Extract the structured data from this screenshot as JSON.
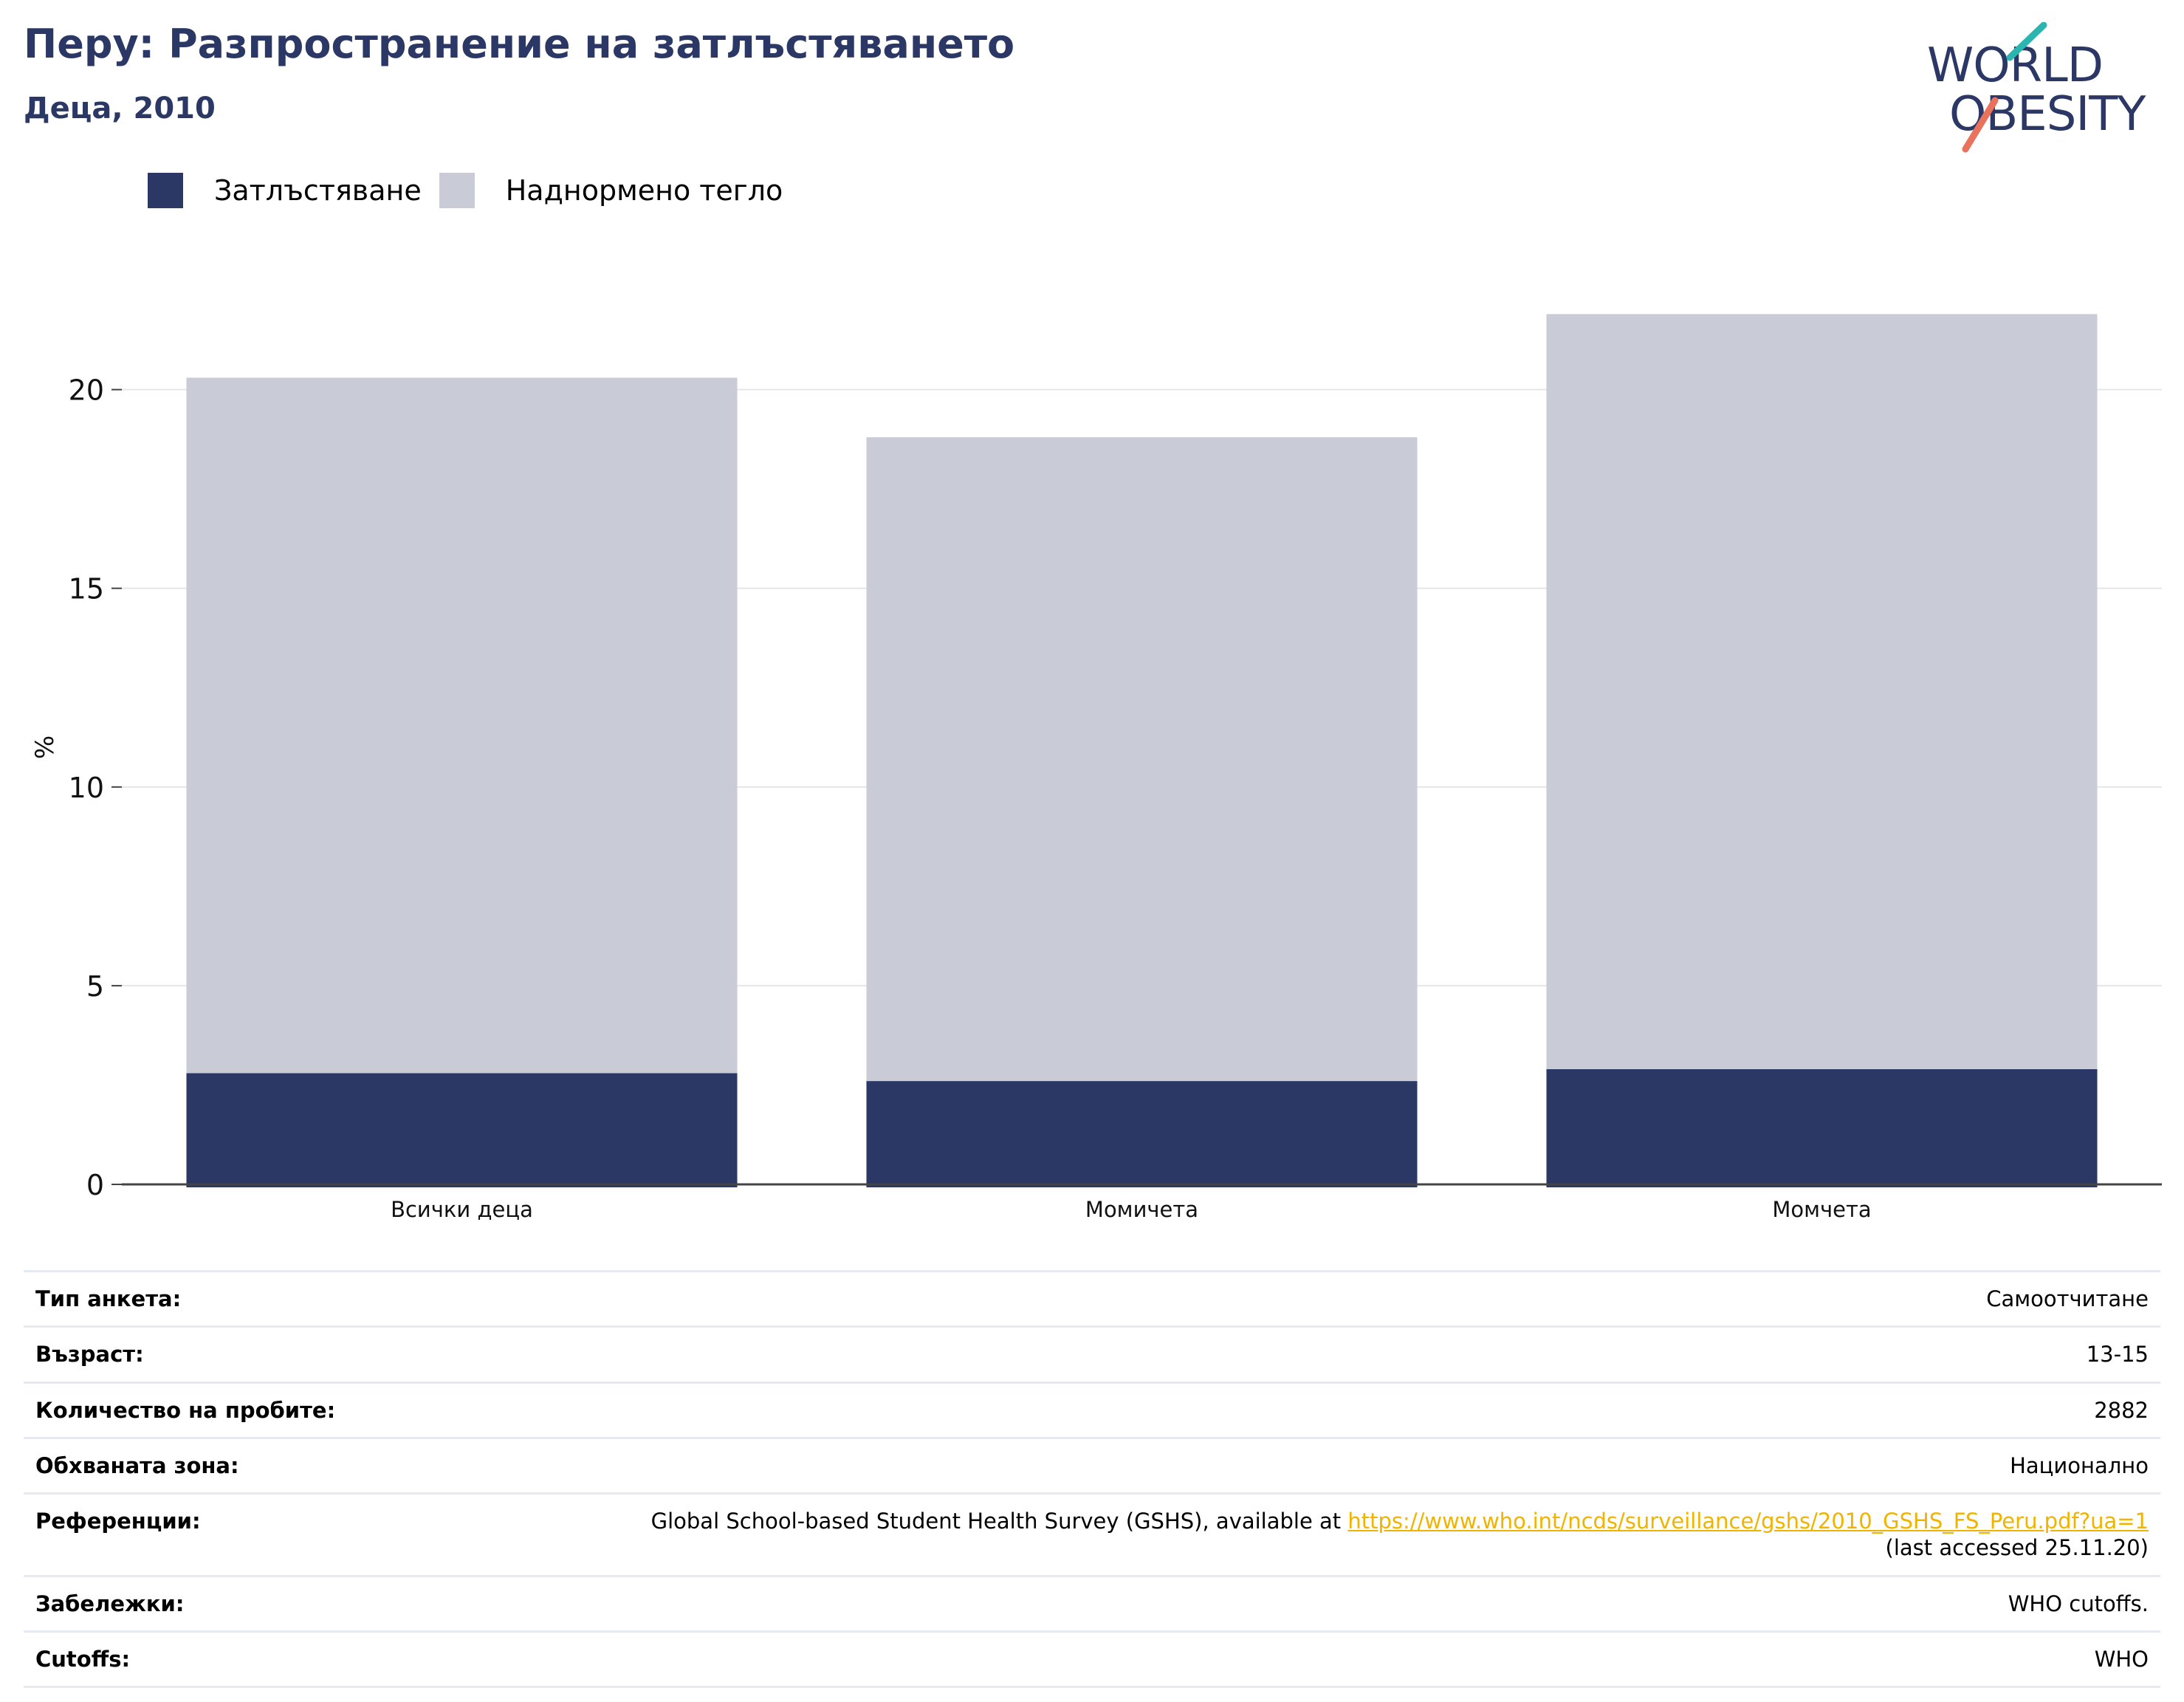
{
  "header": {
    "title": "Перу: Разпространение на затлъстяването",
    "subtitle": "Деца, 2010"
  },
  "logo": {
    "line1": "WORLD",
    "line2": "OBESITY"
  },
  "colors": {
    "obesity": "#2b3764",
    "overweight": "#c9cbd6",
    "title": "#2b3764",
    "link": "#f0b400",
    "logo_teal": "#2bb5b0",
    "logo_coral": "#e8725c"
  },
  "chart_data": {
    "type": "bar",
    "stacked": true,
    "categories": [
      "Всички деца",
      "Момичета",
      "Момчета"
    ],
    "series": [
      {
        "name": "Затлъстяване",
        "values": [
          2.8,
          2.6,
          2.9
        ]
      },
      {
        "name": "Наднормено тегло",
        "values": [
          17.5,
          16.2,
          19.0
        ]
      }
    ],
    "ylabel": "%",
    "ylim": [
      0,
      22
    ],
    "yticks": [
      0,
      5,
      10,
      15,
      20
    ],
    "grid": true,
    "legend_position": "top-left"
  },
  "info": {
    "rows": [
      {
        "key": "Тип анкета:",
        "value": "Самоотчитане"
      },
      {
        "key": "Възраст:",
        "value": "13-15"
      },
      {
        "key": "Количество на пробите:",
        "value": "2882"
      },
      {
        "key": "Обхваната зона:",
        "value": "Национално"
      }
    ],
    "references": {
      "key": "Референции:",
      "text": "Global School-based Student Health Survey (GSHS), available at ",
      "link": "https://www.who.int/ncds/surveillance/gshs/2010_GSHS_FS_Peru.pdf?ua=1",
      "suffix": "(last accessed 25.11.20)"
    },
    "rows2": [
      {
        "key": "Забележки:",
        "value": "WHO cutoffs."
      },
      {
        "key": "Cutoffs:",
        "value": "WHO"
      }
    ]
  }
}
